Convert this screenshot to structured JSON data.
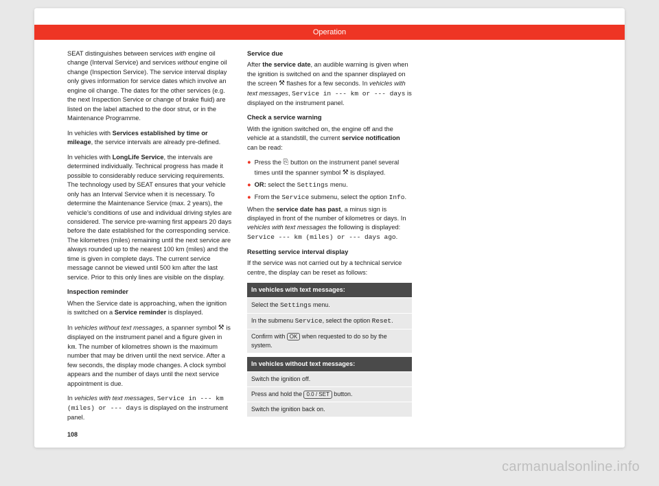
{
  "header": {
    "title": "Operation"
  },
  "col1": {
    "p1_a": "SEAT distinguishes between services ",
    "p1_i1": "with",
    "p1_b": " engine oil change (Interval Service) and services ",
    "p1_i2": "without",
    "p1_c": " engine oil change (Inspection Service). The service interval display only gives information for service dates which involve an engine oil change. The dates for the other services (e.g. the next Inspection Service or change of brake fluid) are listed on the label attached to the door strut, or in the Maintenance Programme.",
    "p2_a": "In vehicles with ",
    "p2_b1": "Services established by time or mileage",
    "p2_b": ", the service intervals are already pre-defined.",
    "p3_a": "In vehicles with ",
    "p3_b1": "LongLife Service",
    "p3_b": ", the intervals are determined individually. Technical progress has made it possible to considerably reduce servicing requirements. The technology used by SEAT ensures that your vehicle only has an Interval Service when it is necessary. To determine the Maintenance Service (max. 2 years), the vehicle's conditions of use and individual driving styles are considered. The service pre-warning first appears 20 days before the date established for the corresponding service. The kilometres (miles) remaining until the next service are always rounded up to the nearest 100 km (miles) and the time is given in complete days. The current service message cannot be viewed until 500 km after the last service. Prior to this only lines are visible on the display."
  },
  "col2": {
    "h1": "Inspection reminder",
    "p1_a": "When the Service date is approaching, when the ignition is switched on a ",
    "p1_b1": "Service reminder",
    "p1_b": " is displayed.",
    "p2_a": "In ",
    "p2_i1": "vehicles without text messages",
    "p2_b": ", a spanner symbol ",
    "p2_c": " is displayed on the instrument panel and a figure given in ",
    "p2_m1": "km",
    "p2_d": ". The number of kilometres shown is the maximum number that may be driven until the next service. After a few seconds, the display mode changes. A clock symbol appears and the number of days until the next service appointment is due.",
    "p3_a": "In ",
    "p3_i1": "vehicles with text messages",
    "p3_b": ", ",
    "p3_m1": "Service in --- km (miles) or --- days",
    "p3_c": " is displayed on the instrument panel.",
    "h2": "Service due",
    "p4_a": "After ",
    "p4_b1": "the service date",
    "p4_b": ", an audible warning is given when the ignition is switched on and the spanner displayed on the screen ",
    "p4_c": " flashes for a few seconds. In ",
    "p4_i1": "vehicles with text messages",
    "p4_d": ", ",
    "p4_m1": "Service in --- km or --- days",
    "p4_e": " is displayed on the instrument panel.",
    "h3": "Check a service warning",
    "p5_a": "With the ignition switched on, the engine off and the vehicle at a standstill, the current ",
    "p5_b1": "service notification",
    "p5_b": " can be read:"
  },
  "col3": {
    "b1_a": "Press the ",
    "b1_glyph": "⎘",
    "b1_b": " button on the instrument panel several times until the spanner symbol ",
    "b1_c": " is displayed.",
    "b2_a": "OR:",
    "b2_b": " select the ",
    "b2_m1": "Settings",
    "b2_c": " menu.",
    "b3_a": "From the ",
    "b3_m1": "Service",
    "b3_b": " submenu, select the option ",
    "b3_m2": "Info",
    "b3_c": ".",
    "p1_a": "When the ",
    "p1_b1": "service date has past",
    "p1_b": ", a minus sign is displayed in front of the number of kilometres or days. In ",
    "p1_i1": "vehicles with text messages",
    "p1_c": " the following is displayed: ",
    "p1_m1": "Service --- km (miles) or --- days ago",
    "p1_d": ".",
    "h1": "Resetting service interval display",
    "p2": "If the service was not carried out by a technical service centre, the display can be reset as follows:",
    "box1_head": "In vehicles with text messages:",
    "box1_r1_a": "Select the ",
    "box1_r1_m": "Settings",
    "box1_r1_b": " menu.",
    "box1_r2_a": "In the submenu ",
    "box1_r2_m1": "Service",
    "box1_r2_b": ", select the option ",
    "box1_r2_m2": "Reset",
    "box1_r2_c": ".",
    "box1_r3_a": "Confirm with ",
    "box1_r3_k": "OK",
    "box1_r3_b": " when requested to do so by the system.",
    "box2_head": "In vehicles without text messages:",
    "box2_r1": "Switch the ignition off.",
    "box2_r2_a": "Press and hold the ",
    "box2_r2_k": "0.0 / SET",
    "box2_r2_b": " button.",
    "box2_r3": "Switch the ignition back on."
  },
  "icons": {
    "spanner": "⚒"
  },
  "page_number": "108",
  "watermark": "carmanualsonline.info"
}
